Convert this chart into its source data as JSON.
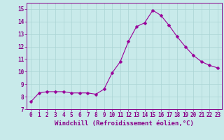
{
  "x": [
    0,
    1,
    2,
    3,
    4,
    5,
    6,
    7,
    8,
    9,
    10,
    11,
    12,
    13,
    14,
    15,
    16,
    17,
    18,
    19,
    20,
    21,
    22,
    23
  ],
  "y": [
    7.6,
    8.3,
    8.4,
    8.4,
    8.4,
    8.3,
    8.3,
    8.3,
    8.2,
    8.6,
    9.9,
    10.8,
    12.4,
    13.6,
    13.9,
    14.9,
    14.5,
    13.7,
    12.8,
    12.0,
    11.3,
    10.8,
    10.5,
    10.3
  ],
  "line_color": "#990099",
  "marker": "D",
  "markersize": 2.5,
  "linewidth": 0.8,
  "xlabel": "Windchill (Refroidissement éolien,°C)",
  "xlabel_fontsize": 6.5,
  "xlim": [
    -0.5,
    23.5
  ],
  "ylim": [
    7,
    15.5
  ],
  "yticks": [
    7,
    8,
    9,
    10,
    11,
    12,
    13,
    14,
    15
  ],
  "xticks": [
    0,
    1,
    2,
    3,
    4,
    5,
    6,
    7,
    8,
    9,
    10,
    11,
    12,
    13,
    14,
    15,
    16,
    17,
    18,
    19,
    20,
    21,
    22,
    23
  ],
  "grid_color": "#aad4d4",
  "background_color": "#c8eaea",
  "tick_fontsize": 5.5,
  "tick_color": "#880088",
  "label_color": "#880088"
}
